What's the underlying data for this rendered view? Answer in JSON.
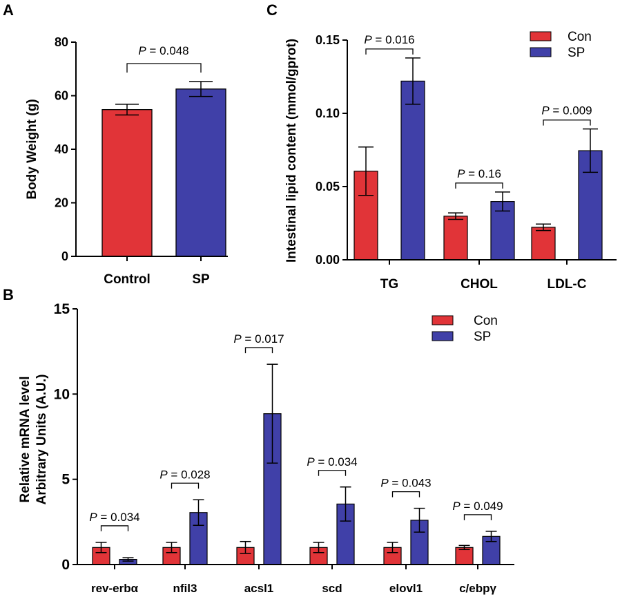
{
  "colors": {
    "con": "#e13438",
    "sp": "#4040a8",
    "axis": "#000000"
  },
  "chart_data": [
    {
      "panel": "A",
      "type": "bar",
      "title": "",
      "xlabel": "",
      "ylabel": "Body Weight  (g)",
      "ylim": [
        0,
        80
      ],
      "yticks": [
        0,
        20,
        40,
        60,
        80
      ],
      "categories": [
        "Control",
        "SP"
      ],
      "values": [
        54.8,
        62.5
      ],
      "errors": [
        2.0,
        2.8
      ],
      "comparisons": [
        {
          "label": "P = 0.048",
          "from": 0,
          "to": 1
        }
      ]
    },
    {
      "panel": "B",
      "type": "bar",
      "title": "",
      "xlabel": "",
      "ylabel_lines": [
        "Relative mRNA level",
        "Arbitrary Units (A.U.)"
      ],
      "ylim": [
        0,
        15
      ],
      "yticks": [
        0,
        5,
        10,
        15
      ],
      "categories": [
        "rev-erbα",
        "nfil3",
        "acsl1",
        "scd",
        "elovl1",
        "c/ebpγ"
      ],
      "legend": [
        "Con",
        "SP"
      ],
      "series": [
        {
          "name": "Con",
          "values": [
            1.0,
            1.0,
            1.0,
            1.0,
            1.0,
            1.0
          ],
          "errors": [
            0.3,
            0.3,
            0.35,
            0.3,
            0.3,
            0.12
          ]
        },
        {
          "name": "SP",
          "values": [
            0.3,
            3.05,
            8.85,
            3.55,
            2.6,
            1.65
          ],
          "errors": [
            0.1,
            0.75,
            2.9,
            1.0,
            0.7,
            0.3
          ]
        }
      ],
      "comparisons": [
        {
          "label": "P = 0.034",
          "category": 0
        },
        {
          "label": "P = 0.028",
          "category": 1
        },
        {
          "label": "P = 0.017",
          "category": 2
        },
        {
          "label": "P = 0.034",
          "category": 3
        },
        {
          "label": "P = 0.043",
          "category": 4
        },
        {
          "label": "P = 0.049",
          "category": 5
        }
      ]
    },
    {
      "panel": "C",
      "type": "bar",
      "title": "",
      "xlabel": "",
      "ylabel": "Intestinal lipid content (mmol/gprot)",
      "ylim": [
        0,
        0.15
      ],
      "yticks": [
        0.0,
        0.05,
        0.1,
        0.15
      ],
      "ytick_labels": [
        "0.00",
        "0.05",
        "0.10",
        "0.15"
      ],
      "categories": [
        "TG",
        "CHOL",
        "LDL-C"
      ],
      "legend": [
        "Con",
        "SP"
      ],
      "series": [
        {
          "name": "Con",
          "values": [
            0.0605,
            0.0298,
            0.0222
          ],
          "errors": [
            0.0165,
            0.0022,
            0.0022
          ]
        },
        {
          "name": "SP",
          "values": [
            0.122,
            0.0398,
            0.0745
          ],
          "errors": [
            0.0158,
            0.0065,
            0.0148
          ]
        }
      ],
      "comparisons": [
        {
          "label": "P = 0.016",
          "category": 0
        },
        {
          "label": "P = 0.16",
          "category": 1
        },
        {
          "label": "P = 0.009",
          "category": 2
        }
      ]
    }
  ]
}
